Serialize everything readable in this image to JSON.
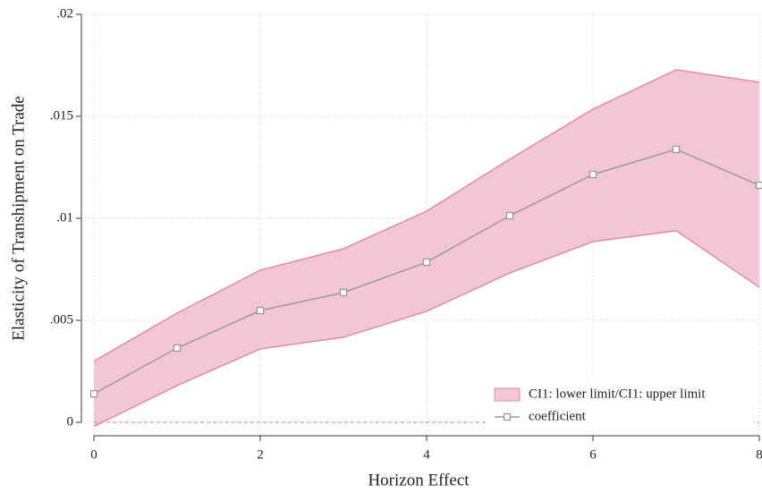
{
  "chart_data": {
    "type": "band-line",
    "x_label": "Horizon Effect",
    "y_label": "Elasticity of Transhipment on Trade",
    "x": [
      0,
      1,
      2,
      3,
      4,
      5,
      6,
      7,
      8
    ],
    "series": [
      {
        "name": "CI1: lower limit/CI1: upper limit",
        "color": "#f2c6d2",
        "edge_color": "#e08aa4",
        "lower": [
          -0.0002,
          0.0018,
          0.0036,
          0.00417,
          0.00544,
          0.00732,
          0.00886,
          0.00939,
          0.00662
        ],
        "upper": [
          0.003,
          0.00535,
          0.00746,
          0.00851,
          0.01035,
          0.0129,
          0.01535,
          0.01728,
          0.01667
        ]
      },
      {
        "name": "coefficient",
        "color": "#9a9a9a",
        "values": [
          0.0014,
          0.00364,
          0.00548,
          0.00636,
          0.00785,
          0.01013,
          0.01215,
          0.01338,
          0.01162
        ]
      }
    ],
    "xlim": [
      0,
      8
    ],
    "xticks": [
      0,
      2,
      4,
      6,
      8
    ],
    "ylim": [
      0,
      0.02
    ],
    "yticks": [
      0,
      {
        "value": 0.005,
        "label": ".005"
      },
      {
        "value": 0.01,
        "label": ".01"
      },
      {
        "value": 0.015,
        "label": ".015"
      },
      {
        "value": 0.02,
        "label": ".02"
      }
    ],
    "reference_line": 0,
    "reference_color": "#d9779a",
    "grid": true,
    "legend": "lower-right"
  }
}
